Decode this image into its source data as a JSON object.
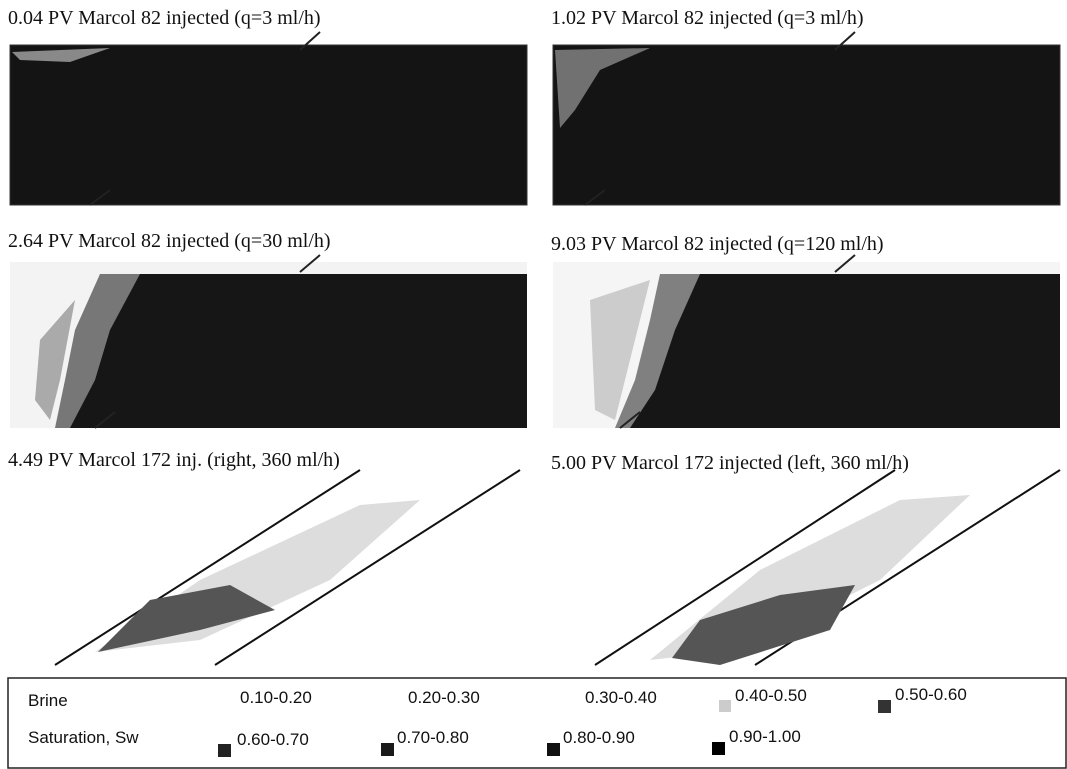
{
  "panels": [
    {
      "title": "0.04 PV Marcol 82 injected (q=3 ml/h)"
    },
    {
      "title": "1.02 PV Marcol 82 injected (q=3 ml/h)"
    },
    {
      "title": "2.64 PV Marcol 82 injected (q=30 ml/h)"
    },
    {
      "title": "9.03 PV Marcol 82 injected (q=120 ml/h)"
    },
    {
      "title": "4.49 PV Marcol 172 inj.  (right, 360 ml/h)"
    },
    {
      "title": "5.00 PV Marcol 172 injected (left, 360 ml/h)"
    }
  ],
  "legend": {
    "label_line1": "Brine",
    "label_line2": "Saturation, Sw",
    "ranges": [
      "0.10-0.20",
      "0.20-0.30",
      "0.30-0.40",
      "0.40-0.50",
      "0.50-0.60",
      "0.60-0.70",
      "0.70-0.80",
      "0.80-0.90",
      "0.90-1.00"
    ]
  }
}
